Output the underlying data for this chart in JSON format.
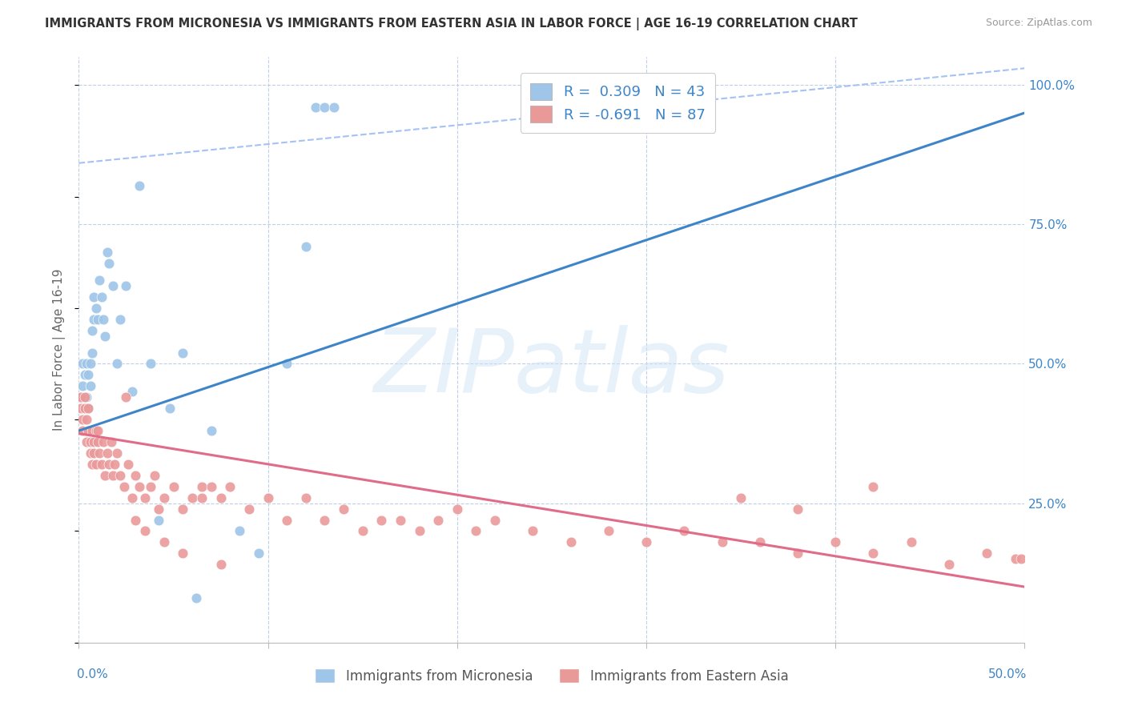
{
  "title": "IMMIGRANTS FROM MICRONESIA VS IMMIGRANTS FROM EASTERN ASIA IN LABOR FORCE | AGE 16-19 CORRELATION CHART",
  "source": "Source: ZipAtlas.com",
  "ylabel": "In Labor Force | Age 16-19",
  "xlim": [
    0.0,
    0.5
  ],
  "ylim": [
    0.0,
    1.05
  ],
  "yticks": [
    0.25,
    0.5,
    0.75,
    1.0
  ],
  "ytick_labels": [
    "25.0%",
    "50.0%",
    "75.0%",
    "100.0%"
  ],
  "R_micronesia": 0.309,
  "N_micronesia": 43,
  "R_eastern_asia": -0.691,
  "N_eastern_asia": 87,
  "color_micronesia": "#9fc5e8",
  "color_eastern_asia": "#ea9999",
  "color_micronesia_line": "#3d85c8",
  "color_eastern_asia_line": "#e06c8a",
  "color_dashed_line": "#a4c2f4",
  "color_grid": "#c0cfe8",
  "color_axis_labels": "#3d85c8",
  "watermark": "ZIPatlas",
  "watermark_color": "#d0e4f7",
  "legend_label_micronesia": "Immigrants from Micronesia",
  "legend_label_eastern_asia": "Immigrants from Eastern Asia",
  "mic_x": [
    0.001,
    0.002,
    0.002,
    0.003,
    0.003,
    0.004,
    0.004,
    0.005,
    0.005,
    0.006,
    0.006,
    0.007,
    0.007,
    0.008,
    0.008,
    0.009,
    0.01,
    0.011,
    0.012,
    0.013,
    0.014,
    0.015,
    0.016,
    0.018,
    0.02,
    0.022,
    0.025,
    0.028,
    0.032,
    0.038,
    0.042,
    0.048,
    0.055,
    0.062,
    0.07,
    0.085,
    0.095,
    0.11,
    0.12,
    0.125,
    0.13,
    0.135,
    0.26
  ],
  "mic_y": [
    0.44,
    0.46,
    0.5,
    0.48,
    0.42,
    0.5,
    0.44,
    0.48,
    0.42,
    0.5,
    0.46,
    0.52,
    0.56,
    0.58,
    0.62,
    0.6,
    0.58,
    0.65,
    0.62,
    0.58,
    0.55,
    0.7,
    0.68,
    0.64,
    0.5,
    0.58,
    0.64,
    0.45,
    0.82,
    0.5,
    0.22,
    0.42,
    0.52,
    0.08,
    0.38,
    0.2,
    0.16,
    0.5,
    0.71,
    0.96,
    0.96,
    0.96,
    0.96
  ],
  "ea_x": [
    0.001,
    0.001,
    0.002,
    0.002,
    0.003,
    0.003,
    0.004,
    0.004,
    0.005,
    0.005,
    0.006,
    0.006,
    0.007,
    0.007,
    0.008,
    0.008,
    0.009,
    0.009,
    0.01,
    0.01,
    0.011,
    0.012,
    0.013,
    0.014,
    0.015,
    0.016,
    0.017,
    0.018,
    0.019,
    0.02,
    0.022,
    0.024,
    0.026,
    0.028,
    0.03,
    0.032,
    0.035,
    0.038,
    0.04,
    0.042,
    0.045,
    0.05,
    0.055,
    0.06,
    0.065,
    0.07,
    0.075,
    0.08,
    0.09,
    0.1,
    0.11,
    0.12,
    0.13,
    0.14,
    0.15,
    0.16,
    0.17,
    0.18,
    0.19,
    0.2,
    0.21,
    0.22,
    0.24,
    0.26,
    0.28,
    0.3,
    0.32,
    0.34,
    0.36,
    0.38,
    0.4,
    0.42,
    0.44,
    0.46,
    0.48,
    0.495,
    0.498,
    0.35,
    0.38,
    0.42,
    0.025,
    0.03,
    0.035,
    0.045,
    0.055,
    0.065,
    0.075
  ],
  "ea_y": [
    0.44,
    0.42,
    0.4,
    0.38,
    0.42,
    0.44,
    0.36,
    0.4,
    0.38,
    0.42,
    0.36,
    0.34,
    0.38,
    0.32,
    0.36,
    0.34,
    0.38,
    0.32,
    0.36,
    0.38,
    0.34,
    0.32,
    0.36,
    0.3,
    0.34,
    0.32,
    0.36,
    0.3,
    0.32,
    0.34,
    0.3,
    0.28,
    0.32,
    0.26,
    0.3,
    0.28,
    0.26,
    0.28,
    0.3,
    0.24,
    0.26,
    0.28,
    0.24,
    0.26,
    0.28,
    0.28,
    0.26,
    0.28,
    0.24,
    0.26,
    0.22,
    0.26,
    0.22,
    0.24,
    0.2,
    0.22,
    0.22,
    0.2,
    0.22,
    0.24,
    0.2,
    0.22,
    0.2,
    0.18,
    0.2,
    0.18,
    0.2,
    0.18,
    0.18,
    0.16,
    0.18,
    0.16,
    0.18,
    0.14,
    0.16,
    0.15,
    0.15,
    0.26,
    0.24,
    0.28,
    0.44,
    0.22,
    0.2,
    0.18,
    0.16,
    0.26,
    0.14
  ],
  "blue_line_x0": 0.0,
  "blue_line_y0": 0.38,
  "blue_line_x1": 0.5,
  "blue_line_y1": 0.95,
  "pink_line_x0": 0.0,
  "pink_line_y0": 0.375,
  "pink_line_x1": 0.5,
  "pink_line_y1": 0.1,
  "dash_line_x0": 0.0,
  "dash_line_y0": 0.86,
  "dash_line_x1": 0.5,
  "dash_line_y1": 1.03
}
